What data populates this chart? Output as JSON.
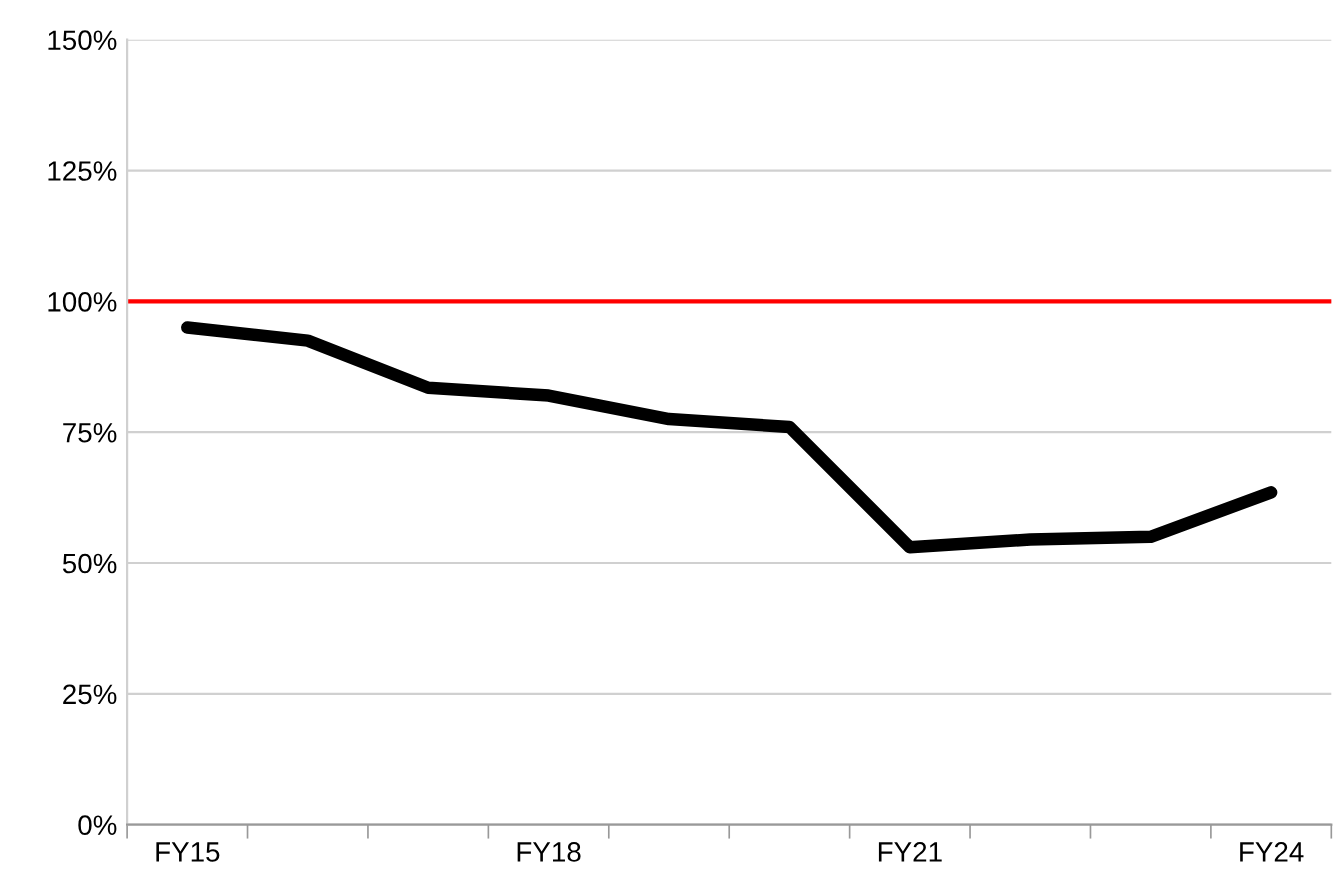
{
  "chart_data": {
    "type": "line",
    "categories": [
      "FY15",
      null,
      null,
      "FY18",
      null,
      null,
      "FY21",
      null,
      null,
      "FY24"
    ],
    "series": [
      {
        "color": "#000000",
        "values": [
          95,
          92.5,
          83.5,
          82,
          77.5,
          76,
          53,
          54.5,
          55,
          63.5
        ]
      }
    ],
    "ylim": [
      0,
      150
    ],
    "yticks": [
      {
        "value": 0,
        "label": "0%"
      },
      {
        "value": 25,
        "label": "25%"
      },
      {
        "value": 50,
        "label": "50%"
      },
      {
        "value": 75,
        "label": "75%"
      },
      {
        "value": 100,
        "label": "100%"
      },
      {
        "value": 125,
        "label": "125%"
      },
      {
        "value": 150,
        "label": "150%"
      }
    ],
    "ref_lines": [
      {
        "axis": "y",
        "value": 100,
        "color": "#ff0000"
      }
    ],
    "grid": "y",
    "marker": "none",
    "line_style": "solid"
  }
}
